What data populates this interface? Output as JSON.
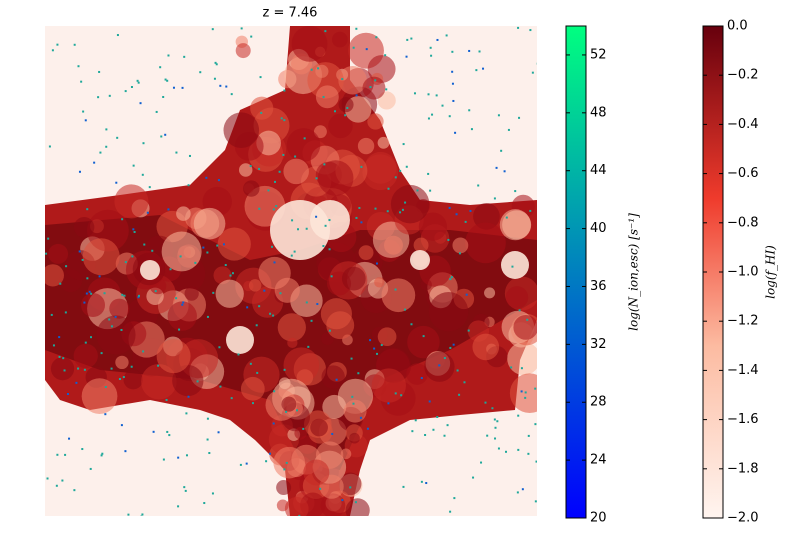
{
  "chart_data": {
    "type": "heatmap",
    "title": "z =  7.46",
    "colorbars": [
      {
        "label": "log(N_ion,esc) [s⁻¹]",
        "lim": [
          20,
          54
        ],
        "ticks": [
          20,
          24,
          28,
          32,
          36,
          40,
          44,
          48,
          52
        ],
        "colors": [
          "#0000ff",
          "#00ff80"
        ]
      },
      {
        "label": "log(f_HI)",
        "lim": [
          -2,
          0
        ],
        "ticks": [
          {
            "value": -2,
            "label": "−2.0"
          },
          {
            "value": -1.8,
            "label": "−1.8"
          },
          {
            "value": -1.6,
            "label": "−1.6"
          },
          {
            "value": -1.4,
            "label": "−1.4"
          },
          {
            "value": -1.2,
            "label": "−1.2"
          },
          {
            "value": -1,
            "label": "−1.0"
          },
          {
            "value": -0.8,
            "label": "−0.8"
          },
          {
            "value": -0.6,
            "label": "−0.6"
          },
          {
            "value": -0.4,
            "label": "−0.4"
          },
          {
            "value": -0.2,
            "label": "−0.2"
          },
          {
            "value": 0,
            "label": "0.0"
          }
        ],
        "colors": [
          "#fff5f0",
          "#67000d"
        ]
      }
    ]
  }
}
